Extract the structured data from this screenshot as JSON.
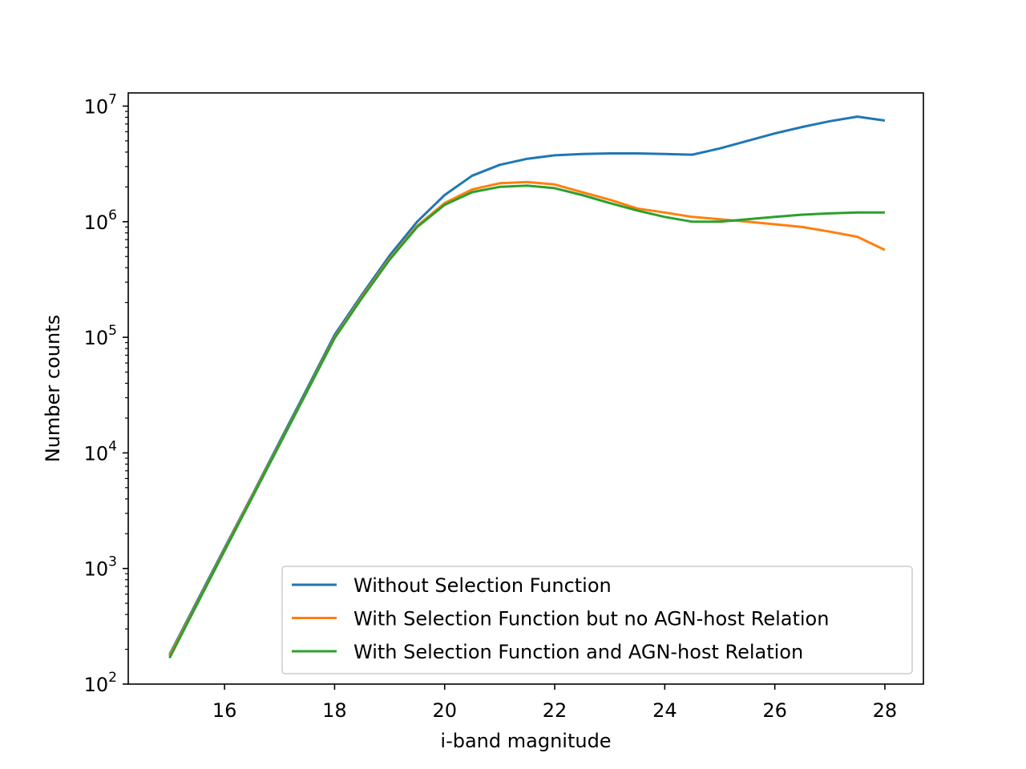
{
  "chart_data": {
    "type": "line",
    "xlabel": "i-band magnitude",
    "ylabel": "Number counts",
    "xlim": [
      14.25,
      28.7
    ],
    "ylim": [
      100,
      13000000
    ],
    "yscale": "log",
    "x_ticks": [
      16,
      18,
      20,
      22,
      24,
      26,
      28
    ],
    "x_tick_labels": [
      "16",
      "18",
      "20",
      "22",
      "24",
      "26",
      "28"
    ],
    "y_ticks": [
      100,
      1000,
      10000,
      100000,
      1000000,
      10000000
    ],
    "y_tick_labels": [
      {
        "base": "10",
        "exp": "2"
      },
      {
        "base": "10",
        "exp": "3"
      },
      {
        "base": "10",
        "exp": "4"
      },
      {
        "base": "10",
        "exp": "5"
      },
      {
        "base": "10",
        "exp": "6"
      },
      {
        "base": "10",
        "exp": "7"
      }
    ],
    "grid": false,
    "legend_position": "lower-right",
    "x": [
      15,
      15.5,
      16,
      16.5,
      17,
      17.5,
      18,
      18.5,
      19,
      19.5,
      20,
      20.5,
      21,
      21.5,
      22,
      22.5,
      23,
      23.5,
      24,
      24.5,
      25,
      25.5,
      26,
      26.5,
      27,
      27.5,
      28
    ],
    "series": [
      {
        "name": "Without Selection Function",
        "color": "#1f77b4",
        "values": [
          180,
          520,
          1500,
          4300,
          12500,
          36000,
          105000,
          235000,
          510000,
          1000000,
          1700000,
          2500000,
          3100000,
          3500000,
          3750000,
          3850000,
          3900000,
          3900000,
          3850000,
          3800000,
          4300000,
          5000000,
          5800000,
          6600000,
          7400000,
          8100000,
          7500000
        ]
      },
      {
        "name": "With Selection Function but no AGN-host Relation",
        "color": "#ff7f0e",
        "values": [
          175,
          500,
          1450,
          4200,
          12000,
          34500,
          100000,
          225000,
          480000,
          920000,
          1450000,
          1900000,
          2150000,
          2200000,
          2100000,
          1800000,
          1550000,
          1300000,
          1200000,
          1100000,
          1050000,
          1000000,
          950000,
          900000,
          820000,
          740000,
          570000
        ]
      },
      {
        "name": "With Selection Function and AGN-host Relation",
        "color": "#2ca02c",
        "values": [
          168,
          490,
          1420,
          4100,
          11800,
          34000,
          98000,
          220000,
          470000,
          900000,
          1400000,
          1800000,
          2000000,
          2050000,
          1950000,
          1700000,
          1450000,
          1250000,
          1100000,
          1000000,
          1000000,
          1050000,
          1100000,
          1150000,
          1180000,
          1200000,
          1200000
        ]
      }
    ]
  }
}
